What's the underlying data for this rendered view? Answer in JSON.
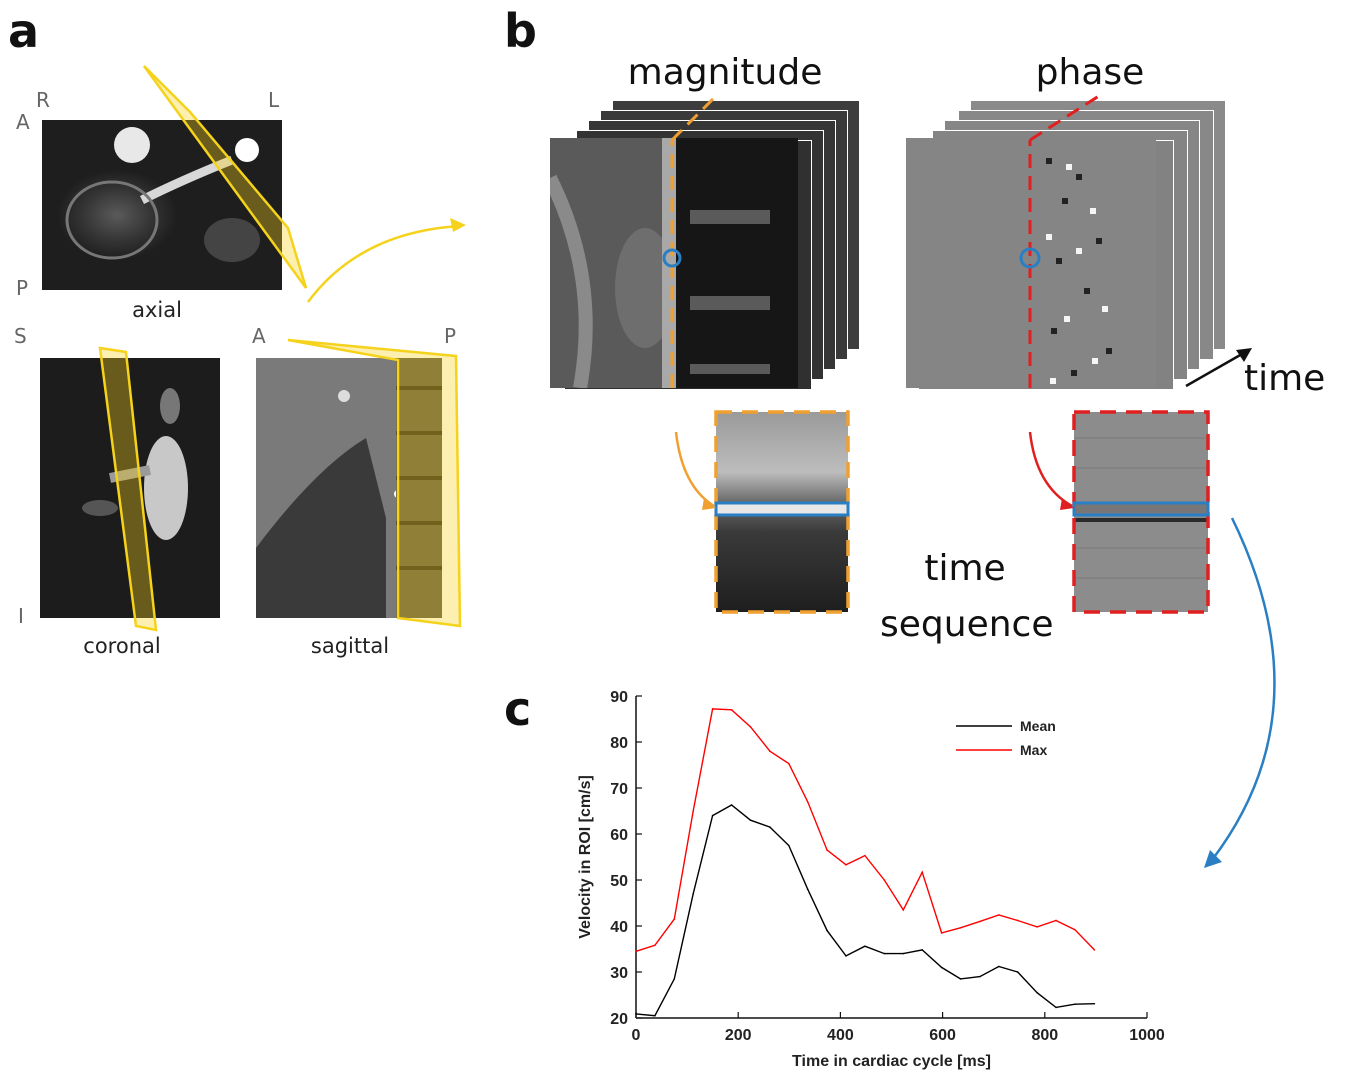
{
  "panels": {
    "a": {
      "letter": "a",
      "orientation": {
        "R": "R",
        "L": "L",
        "A": "A",
        "P": "P",
        "S": "S",
        "I": "I",
        "A2": "A",
        "P2": "P"
      },
      "views": {
        "axial": "axial",
        "coronal": "coronal",
        "sagittal": "sagittal"
      }
    },
    "b": {
      "letter": "b",
      "magnitude_label": "magnitude",
      "phase_label": "phase",
      "time_label": "time",
      "time_sequence_label": [
        "time",
        "sequence"
      ]
    },
    "c": {
      "letter": "c"
    }
  },
  "colors": {
    "plane_yellow": "#f5d21b",
    "magnitude_dash": "#f0a030",
    "phase_dash": "#e02020",
    "roi_blue": "#2a7fc4",
    "mean_line": "#000000",
    "max_line": "#ff0000"
  },
  "chart_data": {
    "type": "line",
    "title": "",
    "xlabel": "Time in cardiac cycle [ms]",
    "ylabel": "Velocity in ROI [cm/s]",
    "xlim": [
      0,
      1000
    ],
    "ylim": [
      20,
      90
    ],
    "xticks": [
      0,
      200,
      400,
      600,
      800,
      1000
    ],
    "yticks": [
      20,
      30,
      40,
      50,
      60,
      70,
      80,
      90
    ],
    "legend_position": "top-right",
    "grid": false,
    "series": [
      {
        "name": "Mean",
        "color": "#000000",
        "x": [
          0,
          37,
          75,
          112,
          150,
          187,
          224,
          262,
          299,
          336,
          374,
          411,
          448,
          486,
          523,
          560,
          598,
          635,
          673,
          710,
          747,
          785,
          822,
          859,
          897
        ],
        "y": [
          20.9,
          20.5,
          28.5,
          47,
          64,
          66.3,
          63,
          61.5,
          57.5,
          48,
          39,
          33.5,
          35.6,
          34,
          34,
          34.8,
          31,
          28.5,
          29,
          31.2,
          30,
          25.5,
          22.3,
          23,
          23.1
        ]
      },
      {
        "name": "Max",
        "color": "#ff0000",
        "x": [
          0,
          37,
          75,
          112,
          150,
          187,
          224,
          262,
          299,
          336,
          374,
          411,
          448,
          486,
          523,
          560,
          598,
          635,
          673,
          710,
          747,
          785,
          822,
          859,
          897
        ],
        "y": [
          34.5,
          35.8,
          41.5,
          65,
          87.2,
          87,
          83.3,
          78,
          75.3,
          67,
          56.5,
          53.3,
          55.3,
          50,
          43.5,
          51.7,
          38.5,
          39.6,
          41,
          42.4,
          41.2,
          39.8,
          41.2,
          39.2,
          34.8
        ]
      }
    ]
  }
}
